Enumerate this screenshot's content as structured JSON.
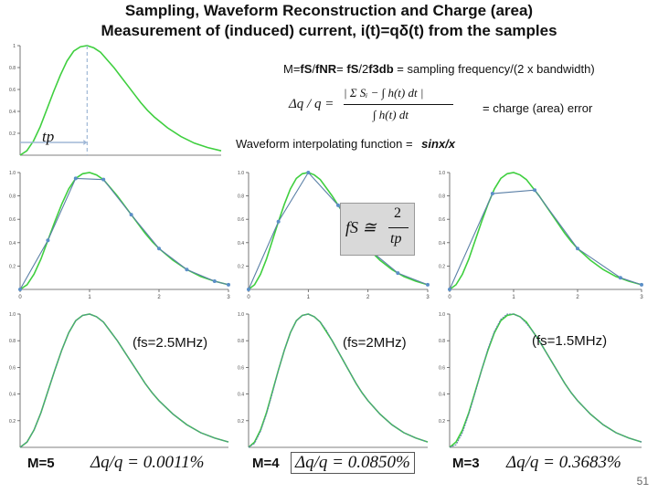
{
  "title": {
    "line1": "Sampling, Waveform Reconstruction and Charge (area)",
    "line2": "Measurement  of (induced) current,  i(t)=qδ(t) from the samples"
  },
  "formulas": {
    "m_prefix": "M=",
    "m_fs": "fS",
    "m_slash1": "/",
    "m_fnr": "fNR",
    "m_eq2": "= ",
    "m_fs2": "fS",
    "m_div": "/2",
    "m_f3db": "f3db",
    "m_suffix": " = sampling frequency/(2 x bandwidth)",
    "dq_lhs": "Δq / q =",
    "dq_num": "| Σ Sᵢ − ∫ h(t) dt |",
    "dq_den": "∫ h(t) dt",
    "dq_text": "= charge (area) error",
    "interp_text": "Waveform interpolating function =",
    "interp_func": "sinx/x",
    "fs_lhs": "fS ≅",
    "fs_num": "2",
    "fs_den": "tp",
    "tp_label": "tp"
  },
  "panel_labels": {
    "col1_freq": "(fs=2.5MHz)",
    "col2_freq": "(fs=2MHz)",
    "col3_freq": "(fs=1.5MHz)",
    "col1_m": "M=5",
    "col2_m": "M=4",
    "col3_m": "M=3",
    "col1_err": "Δq/q = 0.0011%",
    "col2_err": "Δq/q = 0.0850%",
    "col3_err": "Δq/q = 0.3683%"
  },
  "slide_number": "51",
  "colors": {
    "ideal_curve": "#3fcf3f",
    "sampled_curve": "#5a7fa6",
    "sample_point": "#5b8fc7",
    "marker_line": "#9fb7d6"
  },
  "chart_data": [
    {
      "id": "ideal-pulse",
      "type": "line",
      "title": "",
      "xlim": [
        0,
        3
      ],
      "ylim": [
        0,
        1
      ],
      "x_ticks": [],
      "y_ticks": [
        "1",
        "0.8",
        "0.6",
        "0.4",
        "0.2"
      ],
      "series": [
        {
          "role": "ideal",
          "x": [
            0,
            0.1,
            0.2,
            0.3,
            0.4,
            0.5,
            0.6,
            0.7,
            0.8,
            0.9,
            1.0,
            1.1,
            1.2,
            1.3,
            1.4,
            1.5,
            1.6,
            1.7,
            1.8,
            1.9,
            2.0,
            2.2,
            2.4,
            2.6,
            2.8,
            3.0
          ],
          "y": [
            0,
            0.04,
            0.13,
            0.26,
            0.42,
            0.58,
            0.73,
            0.86,
            0.95,
            0.99,
            1.0,
            0.98,
            0.94,
            0.87,
            0.8,
            0.72,
            0.64,
            0.56,
            0.48,
            0.41,
            0.35,
            0.25,
            0.17,
            0.11,
            0.07,
            0.04
          ]
        }
      ],
      "annotation": {
        "tp_marker_x": 1.0
      }
    },
    {
      "id": "sampled-m5",
      "type": "line",
      "xlim": [
        0,
        3
      ],
      "ylim": [
        0,
        1
      ],
      "x_ticks": [
        "0",
        "1",
        "2",
        "3"
      ],
      "y_ticks": [
        "1.0",
        "0.8",
        "0.6",
        "0.4",
        "0.2"
      ],
      "series": [
        {
          "role": "ideal",
          "x": [
            0,
            0.1,
            0.2,
            0.3,
            0.4,
            0.5,
            0.6,
            0.7,
            0.8,
            0.9,
            1.0,
            1.1,
            1.2,
            1.3,
            1.4,
            1.5,
            1.6,
            1.7,
            1.8,
            1.9,
            2.0,
            2.2,
            2.4,
            2.6,
            2.8,
            3.0
          ],
          "y": [
            0,
            0.04,
            0.13,
            0.26,
            0.42,
            0.58,
            0.73,
            0.86,
            0.95,
            0.99,
            1.0,
            0.98,
            0.94,
            0.87,
            0.8,
            0.72,
            0.64,
            0.56,
            0.48,
            0.41,
            0.35,
            0.25,
            0.17,
            0.11,
            0.07,
            0.04
          ]
        },
        {
          "role": "sampled",
          "x": [
            0,
            0.4,
            0.8,
            1.2,
            1.6,
            2.0,
            2.4,
            2.8,
            3.0
          ],
          "y": [
            0,
            0.42,
            0.95,
            0.94,
            0.64,
            0.35,
            0.17,
            0.07,
            0.04
          ]
        }
      ]
    },
    {
      "id": "sampled-m4",
      "type": "line",
      "xlim": [
        0,
        3
      ],
      "ylim": [
        0,
        1
      ],
      "x_ticks": [
        "0",
        "1",
        "2",
        "3"
      ],
      "y_ticks": [
        "1.0",
        "0.8",
        "0.6",
        "0.4",
        "0.2"
      ],
      "series": [
        {
          "role": "ideal",
          "x": [
            0,
            0.1,
            0.2,
            0.3,
            0.4,
            0.5,
            0.6,
            0.7,
            0.8,
            0.9,
            1.0,
            1.1,
            1.2,
            1.3,
            1.4,
            1.5,
            1.6,
            1.7,
            1.8,
            1.9,
            2.0,
            2.2,
            2.4,
            2.6,
            2.8,
            3.0
          ],
          "y": [
            0,
            0.04,
            0.13,
            0.26,
            0.42,
            0.58,
            0.73,
            0.86,
            0.95,
            0.99,
            1.0,
            0.98,
            0.94,
            0.87,
            0.8,
            0.72,
            0.64,
            0.56,
            0.48,
            0.41,
            0.35,
            0.25,
            0.17,
            0.11,
            0.07,
            0.04
          ]
        },
        {
          "role": "sampled",
          "x": [
            0,
            0.5,
            1.0,
            1.5,
            2.0,
            2.5,
            3.0
          ],
          "y": [
            0,
            0.58,
            1.0,
            0.72,
            0.35,
            0.14,
            0.04
          ]
        }
      ]
    },
    {
      "id": "sampled-m3",
      "type": "line",
      "xlim": [
        0,
        3
      ],
      "ylim": [
        0,
        1
      ],
      "x_ticks": [
        "0",
        "1",
        "2",
        "3"
      ],
      "y_ticks": [
        "1.0",
        "0.8",
        "0.6",
        "0.4",
        "0.2"
      ],
      "series": [
        {
          "role": "ideal",
          "x": [
            0,
            0.1,
            0.2,
            0.3,
            0.4,
            0.5,
            0.6,
            0.7,
            0.8,
            0.9,
            1.0,
            1.1,
            1.2,
            1.3,
            1.4,
            1.5,
            1.6,
            1.7,
            1.8,
            1.9,
            2.0,
            2.2,
            2.4,
            2.6,
            2.8,
            3.0
          ],
          "y": [
            0,
            0.04,
            0.13,
            0.26,
            0.42,
            0.58,
            0.73,
            0.86,
            0.95,
            0.99,
            1.0,
            0.98,
            0.94,
            0.87,
            0.8,
            0.72,
            0.64,
            0.56,
            0.48,
            0.41,
            0.35,
            0.25,
            0.17,
            0.11,
            0.07,
            0.04
          ]
        },
        {
          "role": "sampled",
          "x": [
            0,
            0.67,
            1.33,
            2.0,
            2.67,
            3.0
          ],
          "y": [
            0,
            0.82,
            0.85,
            0.35,
            0.1,
            0.04
          ]
        }
      ]
    },
    {
      "id": "reconstructed-m5",
      "type": "line",
      "xlim": [
        0,
        3
      ],
      "ylim": [
        0,
        1
      ],
      "x_ticks": [],
      "y_ticks": [
        "1.0",
        "0.8",
        "0.6",
        "0.4",
        "0.2"
      ],
      "series": [
        {
          "role": "ideal",
          "x": [
            0,
            0.1,
            0.2,
            0.3,
            0.4,
            0.5,
            0.6,
            0.7,
            0.8,
            0.9,
            1.0,
            1.1,
            1.2,
            1.3,
            1.4,
            1.5,
            1.6,
            1.7,
            1.8,
            1.9,
            2.0,
            2.2,
            2.4,
            2.6,
            2.8,
            3.0
          ],
          "y": [
            0,
            0.04,
            0.13,
            0.26,
            0.42,
            0.58,
            0.73,
            0.86,
            0.95,
            0.99,
            1.0,
            0.98,
            0.94,
            0.87,
            0.8,
            0.72,
            0.64,
            0.56,
            0.48,
            0.41,
            0.35,
            0.25,
            0.17,
            0.11,
            0.07,
            0.04
          ]
        },
        {
          "role": "reconstructed",
          "x": [
            0,
            0.1,
            0.2,
            0.3,
            0.4,
            0.5,
            0.6,
            0.7,
            0.8,
            0.9,
            1.0,
            1.1,
            1.2,
            1.3,
            1.4,
            1.5,
            1.6,
            1.7,
            1.8,
            1.9,
            2.0,
            2.2,
            2.4,
            2.6,
            2.8,
            3.0
          ],
          "y": [
            0,
            0.04,
            0.13,
            0.26,
            0.42,
            0.58,
            0.73,
            0.86,
            0.95,
            0.99,
            1.0,
            0.98,
            0.94,
            0.87,
            0.8,
            0.72,
            0.64,
            0.56,
            0.48,
            0.41,
            0.35,
            0.25,
            0.17,
            0.11,
            0.07,
            0.04
          ]
        }
      ]
    },
    {
      "id": "reconstructed-m4",
      "type": "line",
      "xlim": [
        0,
        3
      ],
      "ylim": [
        0,
        1
      ],
      "x_ticks": [],
      "y_ticks": [
        "1.0",
        "0.8",
        "0.6",
        "0.4",
        "0.2"
      ],
      "series": [
        {
          "role": "ideal",
          "x": [
            0,
            0.1,
            0.2,
            0.3,
            0.4,
            0.5,
            0.6,
            0.7,
            0.8,
            0.9,
            1.0,
            1.1,
            1.2,
            1.3,
            1.4,
            1.5,
            1.6,
            1.7,
            1.8,
            1.9,
            2.0,
            2.2,
            2.4,
            2.6,
            2.8,
            3.0
          ],
          "y": [
            0,
            0.04,
            0.13,
            0.26,
            0.42,
            0.58,
            0.73,
            0.86,
            0.95,
            0.99,
            1.0,
            0.98,
            0.94,
            0.87,
            0.8,
            0.72,
            0.64,
            0.56,
            0.48,
            0.41,
            0.35,
            0.25,
            0.17,
            0.11,
            0.07,
            0.04
          ]
        },
        {
          "role": "reconstructed",
          "x": [
            0,
            0.1,
            0.2,
            0.3,
            0.4,
            0.5,
            0.6,
            0.7,
            0.8,
            0.9,
            1.0,
            1.1,
            1.2,
            1.3,
            1.4,
            1.5,
            1.6,
            1.7,
            1.8,
            1.9,
            2.0,
            2.2,
            2.4,
            2.6,
            2.8,
            3.0
          ],
          "y": [
            0,
            0.03,
            0.12,
            0.25,
            0.41,
            0.58,
            0.73,
            0.86,
            0.95,
            0.99,
            1.0,
            0.98,
            0.94,
            0.88,
            0.8,
            0.72,
            0.64,
            0.56,
            0.48,
            0.41,
            0.35,
            0.25,
            0.17,
            0.11,
            0.07,
            0.04
          ]
        }
      ]
    },
    {
      "id": "reconstructed-m3",
      "type": "line",
      "xlim": [
        0,
        3
      ],
      "ylim": [
        0,
        1
      ],
      "x_ticks": [],
      "y_ticks": [
        "1.0",
        "0.8",
        "0.6",
        "0.4",
        "0.2"
      ],
      "series": [
        {
          "role": "ideal",
          "x": [
            0,
            0.1,
            0.2,
            0.3,
            0.4,
            0.5,
            0.6,
            0.7,
            0.8,
            0.9,
            1.0,
            1.1,
            1.2,
            1.3,
            1.4,
            1.5,
            1.6,
            1.7,
            1.8,
            1.9,
            2.0,
            2.2,
            2.4,
            2.6,
            2.8,
            3.0
          ],
          "y": [
            0,
            0.04,
            0.13,
            0.26,
            0.42,
            0.58,
            0.73,
            0.86,
            0.95,
            0.99,
            1.0,
            0.98,
            0.94,
            0.87,
            0.8,
            0.72,
            0.64,
            0.56,
            0.48,
            0.41,
            0.35,
            0.25,
            0.17,
            0.11,
            0.07,
            0.04
          ]
        },
        {
          "role": "reconstructed",
          "x": [
            0,
            0.1,
            0.2,
            0.3,
            0.4,
            0.5,
            0.6,
            0.7,
            0.8,
            0.9,
            1.0,
            1.1,
            1.2,
            1.3,
            1.4,
            1.5,
            1.6,
            1.7,
            1.8,
            1.9,
            2.0,
            2.2,
            2.4,
            2.6,
            2.8,
            3.0
          ],
          "y": [
            0,
            0.02,
            0.11,
            0.25,
            0.41,
            0.58,
            0.74,
            0.87,
            0.96,
            1.0,
            1.0,
            0.98,
            0.93,
            0.87,
            0.8,
            0.72,
            0.64,
            0.56,
            0.48,
            0.41,
            0.35,
            0.25,
            0.17,
            0.11,
            0.07,
            0.04
          ]
        }
      ]
    }
  ]
}
